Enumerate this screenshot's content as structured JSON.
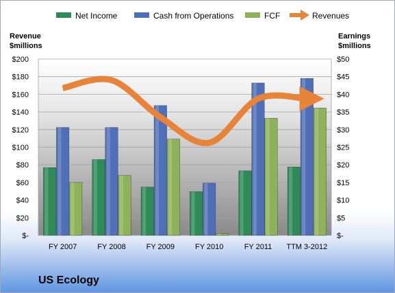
{
  "chart_data": {
    "type": "bar",
    "company": "US Ecology",
    "categories": [
      "FY 2007",
      "FY 2008",
      "FY 2009",
      "FY 2010",
      "FY 2011",
      "TTM 3-2012"
    ],
    "series": [
      {
        "name": "Net Income",
        "axis": "right",
        "type": "bar",
        "color": "#2e8b57",
        "values": [
          19.2,
          21.5,
          13.7,
          12.4,
          18.3,
          19.4
        ]
      },
      {
        "name": "Cash from Operations",
        "axis": "right",
        "type": "bar",
        "color": "#4f6fb8",
        "values": [
          30.6,
          30.6,
          36.8,
          14.8,
          43.2,
          44.5
        ]
      },
      {
        "name": "FCF",
        "axis": "right",
        "type": "bar",
        "color": "#8db25a",
        "values": [
          15.0,
          17.0,
          27.3,
          0.5,
          33.2,
          36.1
        ]
      },
      {
        "name": "Revenues",
        "axis": "left",
        "type": "line",
        "color": "#e8843a",
        "values": [
          167,
          176,
          134,
          105,
          155,
          155
        ]
      }
    ],
    "left_axis": {
      "title_line1": "Revenue",
      "title_line2": "$millions",
      "ylim": [
        0,
        200
      ],
      "ticks": [
        "$-",
        "$20",
        "$40",
        "$60",
        "$80",
        "$100",
        "$120",
        "$140",
        "$160",
        "$180",
        "$200"
      ]
    },
    "right_axis": {
      "title_line1": "Earnings",
      "title_line2": "$millions",
      "ylim": [
        0,
        50
      ],
      "ticks": [
        "$-",
        "$5",
        "$10",
        "$15",
        "$20",
        "$25",
        "$30",
        "$35",
        "$40",
        "$45",
        "$50"
      ]
    },
    "legend_position": "top",
    "grid": true
  }
}
